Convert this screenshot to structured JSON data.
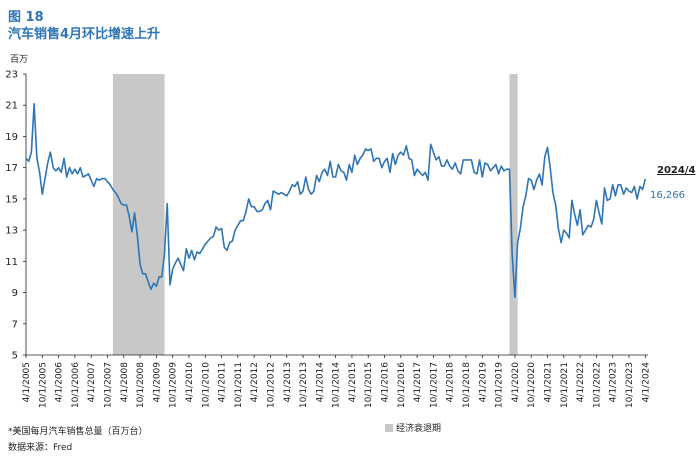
{
  "figure_label": "图 18",
  "figure_title": "汽车销售4月环比增速上升",
  "unit_label": "百万",
  "footnote": "*美国每月汽车销售总量（百万台）",
  "source": "数据来源：Fred",
  "colors": {
    "title": "#2e75b6",
    "line": "#2e75b6",
    "recession": "#c8c8c8",
    "axis": "#222222"
  },
  "chart_data": {
    "type": "line",
    "title": "汽车销售4月环比增速上升",
    "ylabel": "百万",
    "ylim": [
      5,
      23
    ],
    "yticks": [
      5,
      7,
      9,
      11,
      13,
      15,
      17,
      19,
      21,
      23
    ],
    "xlim": [
      "2005-04",
      "2024-05"
    ],
    "xticks": [
      "4/1/2005",
      "10/1/2005",
      "4/1/2006",
      "10/1/2006",
      "4/1/2007",
      "10/1/2007",
      "4/1/2008",
      "10/1/2008",
      "4/1/2009",
      "10/1/2009",
      "4/1/2010",
      "10/1/2010",
      "4/1/2011",
      "10/1/2011",
      "4/1/2012",
      "10/1/2012",
      "4/1/2013",
      "10/1/2013",
      "4/1/2014",
      "10/1/2014",
      "4/1/2015",
      "10/1/2015",
      "4/1/2016",
      "10/1/2016",
      "4/1/2017",
      "10/1/2017",
      "4/1/2018",
      "10/1/2018",
      "4/1/2019",
      "10/1/2019",
      "4/1/2020",
      "10/1/2020",
      "4/1/2021",
      "10/1/2021",
      "4/1/2022",
      "10/1/2022",
      "4/1/2023",
      "10/1/2023",
      "4/1/2024"
    ],
    "grid": false,
    "recessions": [
      {
        "start": "2007-12",
        "end": "2009-06"
      },
      {
        "start": "2020-02",
        "end": "2020-04"
      }
    ],
    "legend": {
      "label": "经济衰退期",
      "placement": "bottom-center"
    },
    "annotation": {
      "date_label": "2024/4",
      "value_label": "16,266"
    },
    "series": [
      {
        "name": "",
        "points": [
          [
            "2005-04",
            17.6
          ],
          [
            "2005-05",
            17.4
          ],
          [
            "2005-06",
            18.0
          ],
          [
            "2005-07",
            21.1
          ],
          [
            "2005-08",
            17.6
          ],
          [
            "2005-09",
            16.7
          ],
          [
            "2005-10",
            15.3
          ],
          [
            "2005-11",
            16.3
          ],
          [
            "2005-12",
            17.3
          ],
          [
            "2006-01",
            18.0
          ],
          [
            "2006-02",
            17.0
          ],
          [
            "2006-03",
            16.8
          ],
          [
            "2006-04",
            17.0
          ],
          [
            "2006-05",
            16.7
          ],
          [
            "2006-06",
            17.6
          ],
          [
            "2006-07",
            16.4
          ],
          [
            "2006-08",
            17.0
          ],
          [
            "2006-09",
            16.6
          ],
          [
            "2006-10",
            16.9
          ],
          [
            "2006-11",
            16.6
          ],
          [
            "2006-12",
            17.0
          ],
          [
            "2007-01",
            16.4
          ],
          [
            "2007-02",
            16.5
          ],
          [
            "2007-03",
            16.6
          ],
          [
            "2007-04",
            16.2
          ],
          [
            "2007-05",
            15.8
          ],
          [
            "2007-06",
            16.3
          ],
          [
            "2007-07",
            16.2
          ],
          [
            "2007-08",
            16.3
          ],
          [
            "2007-09",
            16.3
          ],
          [
            "2007-10",
            16.1
          ],
          [
            "2007-11",
            15.9
          ],
          [
            "2007-12",
            15.6
          ],
          [
            "2008-01",
            15.4
          ],
          [
            "2008-02",
            15.1
          ],
          [
            "2008-03",
            14.7
          ],
          [
            "2008-04",
            14.6
          ],
          [
            "2008-05",
            14.6
          ],
          [
            "2008-06",
            13.9
          ],
          [
            "2008-07",
            12.9
          ],
          [
            "2008-08",
            14.1
          ],
          [
            "2008-09",
            12.6
          ],
          [
            "2008-10",
            10.8
          ],
          [
            "2008-11",
            10.2
          ],
          [
            "2008-12",
            10.2
          ],
          [
            "2009-01",
            9.7
          ],
          [
            "2009-02",
            9.2
          ],
          [
            "2009-03",
            9.6
          ],
          [
            "2009-04",
            9.4
          ],
          [
            "2009-05",
            10.0
          ],
          [
            "2009-06",
            10.0
          ],
          [
            "2009-07",
            11.5
          ],
          [
            "2009-08",
            14.7
          ],
          [
            "2009-09",
            9.5
          ],
          [
            "2009-10",
            10.5
          ],
          [
            "2009-11",
            10.9
          ],
          [
            "2009-12",
            11.2
          ],
          [
            "2010-01",
            10.8
          ],
          [
            "2010-02",
            10.4
          ],
          [
            "2010-03",
            11.8
          ],
          [
            "2010-04",
            11.2
          ],
          [
            "2010-05",
            11.7
          ],
          [
            "2010-06",
            11.1
          ],
          [
            "2010-07",
            11.6
          ],
          [
            "2010-08",
            11.5
          ],
          [
            "2010-09",
            11.8
          ],
          [
            "2010-10",
            12.1
          ],
          [
            "2010-11",
            12.3
          ],
          [
            "2010-12",
            12.5
          ],
          [
            "2011-01",
            12.6
          ],
          [
            "2011-02",
            13.2
          ],
          [
            "2011-03",
            13.0
          ],
          [
            "2011-04",
            13.1
          ],
          [
            "2011-05",
            11.9
          ],
          [
            "2011-06",
            11.7
          ],
          [
            "2011-07",
            12.2
          ],
          [
            "2011-08",
            12.3
          ],
          [
            "2011-09",
            13.0
          ],
          [
            "2011-10",
            13.3
          ],
          [
            "2011-11",
            13.6
          ],
          [
            "2011-12",
            13.6
          ],
          [
            "2012-01",
            14.2
          ],
          [
            "2012-02",
            15.0
          ],
          [
            "2012-03",
            14.5
          ],
          [
            "2012-04",
            14.5
          ],
          [
            "2012-05",
            14.2
          ],
          [
            "2012-06",
            14.2
          ],
          [
            "2012-07",
            14.3
          ],
          [
            "2012-08",
            14.7
          ],
          [
            "2012-09",
            14.9
          ],
          [
            "2012-10",
            14.3
          ],
          [
            "2012-11",
            15.5
          ],
          [
            "2012-12",
            15.4
          ],
          [
            "2013-01",
            15.3
          ],
          [
            "2013-02",
            15.4
          ],
          [
            "2013-03",
            15.3
          ],
          [
            "2013-04",
            15.2
          ],
          [
            "2013-05",
            15.5
          ],
          [
            "2013-06",
            15.9
          ],
          [
            "2013-07",
            15.8
          ],
          [
            "2013-08",
            16.1
          ],
          [
            "2013-09",
            15.3
          ],
          [
            "2013-10",
            15.5
          ],
          [
            "2013-11",
            16.4
          ],
          [
            "2013-12",
            15.6
          ],
          [
            "2014-01",
            15.3
          ],
          [
            "2014-02",
            15.5
          ],
          [
            "2014-03",
            16.5
          ],
          [
            "2014-04",
            16.1
          ],
          [
            "2014-05",
            16.7
          ],
          [
            "2014-06",
            16.9
          ],
          [
            "2014-07",
            16.5
          ],
          [
            "2014-08",
            17.4
          ],
          [
            "2014-09",
            16.4
          ],
          [
            "2014-10",
            16.4
          ],
          [
            "2014-11",
            17.2
          ],
          [
            "2014-12",
            16.8
          ],
          [
            "2015-01",
            16.7
          ],
          [
            "2015-02",
            16.2
          ],
          [
            "2015-03",
            17.2
          ],
          [
            "2015-04",
            16.7
          ],
          [
            "2015-05",
            17.8
          ],
          [
            "2015-06",
            17.2
          ],
          [
            "2015-07",
            17.6
          ],
          [
            "2015-08",
            17.8
          ],
          [
            "2015-09",
            18.2
          ],
          [
            "2015-10",
            18.1
          ],
          [
            "2015-11",
            18.2
          ],
          [
            "2015-12",
            17.4
          ],
          [
            "2016-01",
            17.6
          ],
          [
            "2016-02",
            17.6
          ],
          [
            "2016-03",
            17.0
          ],
          [
            "2016-04",
            17.4
          ],
          [
            "2016-05",
            17.6
          ],
          [
            "2016-06",
            16.7
          ],
          [
            "2016-07",
            17.9
          ],
          [
            "2016-08",
            17.2
          ],
          [
            "2016-09",
            17.8
          ],
          [
            "2016-10",
            18.0
          ],
          [
            "2016-11",
            17.8
          ],
          [
            "2016-12",
            18.4
          ],
          [
            "2017-01",
            17.6
          ],
          [
            "2017-02",
            17.5
          ],
          [
            "2017-03",
            16.5
          ],
          [
            "2017-04",
            16.9
          ],
          [
            "2017-05",
            16.7
          ],
          [
            "2017-06",
            16.5
          ],
          [
            "2017-07",
            16.7
          ],
          [
            "2017-08",
            16.2
          ],
          [
            "2017-09",
            18.5
          ],
          [
            "2017-10",
            18.0
          ],
          [
            "2017-11",
            17.5
          ],
          [
            "2017-12",
            17.7
          ],
          [
            "2018-01",
            17.1
          ],
          [
            "2018-02",
            17.1
          ],
          [
            "2018-03",
            17.5
          ],
          [
            "2018-04",
            17.1
          ],
          [
            "2018-05",
            16.9
          ],
          [
            "2018-06",
            17.3
          ],
          [
            "2018-07",
            16.8
          ],
          [
            "2018-08",
            16.6
          ],
          [
            "2018-09",
            17.5
          ],
          [
            "2018-10",
            17.5
          ],
          [
            "2018-11",
            17.5
          ],
          [
            "2018-12",
            17.5
          ],
          [
            "2019-01",
            16.7
          ],
          [
            "2019-02",
            16.6
          ],
          [
            "2019-03",
            17.5
          ],
          [
            "2019-04",
            16.4
          ],
          [
            "2019-05",
            17.3
          ],
          [
            "2019-06",
            17.2
          ],
          [
            "2019-07",
            16.8
          ],
          [
            "2019-08",
            17.0
          ],
          [
            "2019-09",
            17.2
          ],
          [
            "2019-10",
            16.6
          ],
          [
            "2019-11",
            17.1
          ],
          [
            "2019-12",
            16.8
          ],
          [
            "2020-01",
            16.9
          ],
          [
            "2020-02",
            16.9
          ],
          [
            "2020-03",
            11.4
          ],
          [
            "2020-04",
            8.7
          ],
          [
            "2020-05",
            12.2
          ],
          [
            "2020-06",
            13.1
          ],
          [
            "2020-07",
            14.5
          ],
          [
            "2020-08",
            15.2
          ],
          [
            "2020-09",
            16.3
          ],
          [
            "2020-10",
            16.2
          ],
          [
            "2020-11",
            15.6
          ],
          [
            "2020-12",
            16.2
          ],
          [
            "2021-01",
            16.6
          ],
          [
            "2021-02",
            15.9
          ],
          [
            "2021-03",
            17.7
          ],
          [
            "2021-04",
            18.3
          ],
          [
            "2021-05",
            17.0
          ],
          [
            "2021-06",
            15.4
          ],
          [
            "2021-07",
            14.6
          ],
          [
            "2021-08",
            13.1
          ],
          [
            "2021-09",
            12.2
          ],
          [
            "2021-10",
            13.0
          ],
          [
            "2021-11",
            12.8
          ],
          [
            "2021-12",
            12.5
          ],
          [
            "2022-01",
            14.9
          ],
          [
            "2022-02",
            14.0
          ],
          [
            "2022-03",
            13.3
          ],
          [
            "2022-04",
            14.3
          ],
          [
            "2022-05",
            12.7
          ],
          [
            "2022-06",
            13.0
          ],
          [
            "2022-07",
            13.3
          ],
          [
            "2022-08",
            13.2
          ],
          [
            "2022-09",
            13.7
          ],
          [
            "2022-10",
            14.9
          ],
          [
            "2022-11",
            14.1
          ],
          [
            "2022-12",
            13.4
          ],
          [
            "2023-01",
            15.7
          ],
          [
            "2023-02",
            14.9
          ],
          [
            "2023-03",
            15.0
          ],
          [
            "2023-04",
            15.9
          ],
          [
            "2023-05",
            15.2
          ],
          [
            "2023-06",
            15.9
          ],
          [
            "2023-07",
            15.9
          ],
          [
            "2023-08",
            15.3
          ],
          [
            "2023-09",
            15.7
          ],
          [
            "2023-10",
            15.5
          ],
          [
            "2023-11",
            15.4
          ],
          [
            "2023-12",
            15.8
          ],
          [
            "2024-01",
            15.0
          ],
          [
            "2024-02",
            15.8
          ],
          [
            "2024-03",
            15.6
          ],
          [
            "2024-04",
            16.266
          ]
        ]
      }
    ]
  }
}
